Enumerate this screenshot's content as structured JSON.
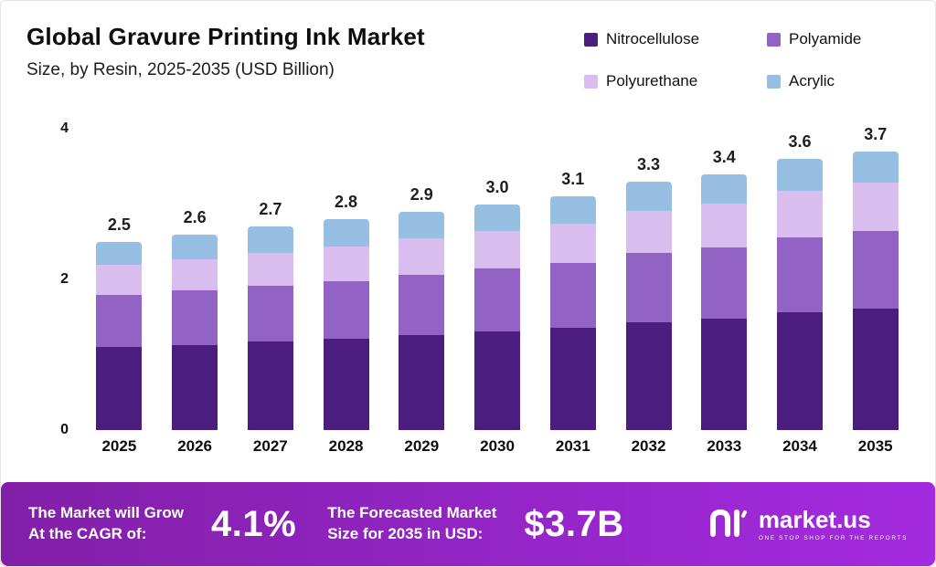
{
  "header": {
    "title": "Global Gravure Printing Ink Market",
    "subtitle": "Size, by Resin, 2025-2035 (USD Billion)"
  },
  "colors": {
    "nitrocellulose": "#4a1d7f",
    "polyamide": "#9263c4",
    "polyurethane": "#d8bdee",
    "acrylic": "#96bfe3",
    "banner_gradient_start": "#821fa8",
    "banner_gradient_end": "#a42ae0",
    "text_dark": "#111111"
  },
  "chart_data": {
    "type": "bar",
    "stacked": true,
    "title": "Global Gravure Printing Ink Market Size, by Resin, 2025-2035 (USD Billion)",
    "categories": [
      "2025",
      "2026",
      "2027",
      "2028",
      "2029",
      "2030",
      "2031",
      "2032",
      "2033",
      "2034",
      "2035"
    ],
    "series": [
      {
        "name": "Nitrocellulose",
        "key": "nitrocellulose",
        "values": [
          1.1,
          1.13,
          1.17,
          1.21,
          1.26,
          1.31,
          1.36,
          1.43,
          1.48,
          1.56,
          1.61
        ]
      },
      {
        "name": "Polyamide",
        "key": "polyamide",
        "values": [
          0.7,
          0.72,
          0.74,
          0.77,
          0.8,
          0.83,
          0.86,
          0.92,
          0.95,
          1.0,
          1.03
        ]
      },
      {
        "name": "Polyurethane",
        "key": "polyurethane",
        "values": [
          0.4,
          0.42,
          0.44,
          0.46,
          0.48,
          0.5,
          0.52,
          0.56,
          0.58,
          0.62,
          0.64
        ]
      },
      {
        "name": "Acrylic",
        "key": "acrylic",
        "values": [
          0.3,
          0.33,
          0.35,
          0.36,
          0.36,
          0.36,
          0.36,
          0.39,
          0.39,
          0.42,
          0.42
        ]
      }
    ],
    "totals": [
      2.5,
      2.6,
      2.7,
      2.8,
      2.9,
      3.0,
      3.1,
      3.3,
      3.4,
      3.6,
      3.7
    ],
    "y_ticks": [
      0,
      2,
      4
    ],
    "ylim": [
      0,
      4
    ],
    "xlabel": "",
    "ylabel": "",
    "grid": false,
    "legend_position": "top-right"
  },
  "banner": {
    "cagr_label": "The Market will Grow\nAt the CAGR of:",
    "cagr_value": "4.1%",
    "forecast_label": "The Forecasted Market\nSize for 2035 in USD:",
    "forecast_value": "$3.7B",
    "logo_text": "market.us",
    "logo_tagline": "ONE STOP SHOP FOR THE REPORTS"
  }
}
